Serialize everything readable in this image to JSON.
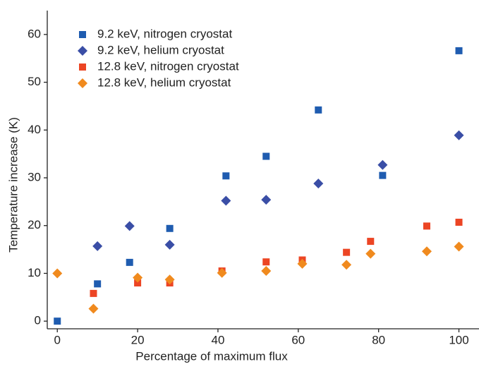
{
  "chart_data": {
    "type": "scatter",
    "x_label": "Percentage of maximum flux",
    "y_label": "Temperature increase (K)",
    "xlim": [
      -2.5,
      105
    ],
    "ylim": [
      -1.6,
      65
    ],
    "xticks": [
      0,
      20,
      40,
      60,
      80,
      100
    ],
    "yticks": [
      0,
      10,
      20,
      30,
      40,
      50,
      60
    ],
    "legend": "upper left",
    "series": [
      {
        "name": "9.2 keV, nitrogen cryostat",
        "color": "#1f5cb0",
        "marker": "square",
        "x": [
          0,
          10,
          18,
          28,
          42,
          52,
          65,
          81,
          100
        ],
        "values": [
          0,
          7.8,
          12.3,
          19.4,
          30.4,
          34.5,
          44.2,
          30.5,
          56.6
        ]
      },
      {
        "name": "9.2 keV, helium cryostat",
        "color": "#3a4ea6",
        "marker": "diamond",
        "x": [
          10,
          18,
          28,
          42,
          52,
          65,
          81,
          100
        ],
        "values": [
          15.7,
          19.9,
          16.0,
          25.2,
          25.4,
          28.8,
          32.7,
          38.9
        ]
      },
      {
        "name": "12.8 keV, nitrogen cryostat",
        "color": "#ec4524",
        "marker": "square",
        "x": [
          9,
          20,
          28,
          41,
          52,
          61,
          72,
          78,
          92,
          100
        ],
        "values": [
          5.8,
          8.0,
          8.0,
          10.5,
          12.4,
          12.8,
          14.4,
          16.7,
          19.9,
          20.7
        ]
      },
      {
        "name": "12.8 keV, helium cryostat",
        "color": "#f08a1e",
        "marker": "diamond",
        "x": [
          0,
          9,
          20,
          28,
          41,
          52,
          61,
          72,
          78,
          92,
          100
        ],
        "values": [
          10.0,
          2.6,
          9.1,
          8.7,
          10.1,
          10.5,
          12.0,
          11.8,
          14.1,
          14.6,
          15.6
        ]
      }
    ]
  }
}
